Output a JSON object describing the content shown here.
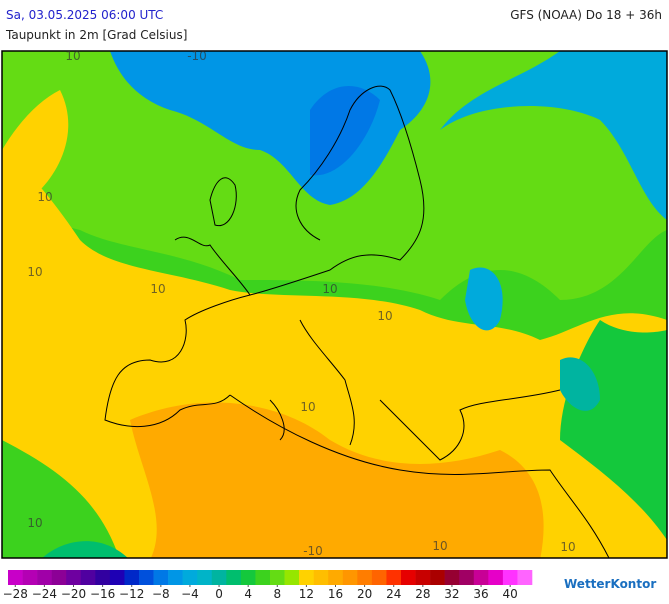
{
  "header": {
    "datetime": "Sa, 03.05.2025 06:00 UTC",
    "model": "GFS (NOAA) Do 18 + 36h",
    "subtitle": "Taupunkt in 2m [Grad Celsius]"
  },
  "map_labels": [
    "10",
    "-10",
    "10",
    "10",
    "10",
    "10",
    "10",
    "10",
    "-10",
    "10",
    "10",
    "10"
  ],
  "legend": {
    "colors": [
      "#c800c8",
      "#b400b4",
      "#a000a8",
      "#8c0096",
      "#6e00a0",
      "#5000a0",
      "#3200a0",
      "#1e00b4",
      "#0028c8",
      "#0050dc",
      "#0078e6",
      "#0096e6",
      "#00aadc",
      "#00b4c8",
      "#00b4a0",
      "#00be6e",
      "#14c83c",
      "#3cd21e",
      "#64dc14",
      "#96e600",
      "#ffd200",
      "#ffbe00",
      "#ffaa00",
      "#ff9600",
      "#ff7d00",
      "#ff6400",
      "#ff3200",
      "#e60000",
      "#c80000",
      "#aa0000",
      "#960032",
      "#a00064",
      "#c80096",
      "#e600c8",
      "#ff32ff",
      "#ff64ff"
    ],
    "ticks": [
      {
        "value": -28,
        "label": "−28"
      },
      {
        "value": -24,
        "label": "−24"
      },
      {
        "value": -20,
        "label": "−20"
      },
      {
        "value": -16,
        "label": "−16"
      },
      {
        "value": -12,
        "label": "−12"
      },
      {
        "value": -8,
        "label": "−8"
      },
      {
        "value": -4,
        "label": "−4"
      },
      0,
      4,
      8,
      12,
      16,
      20,
      24,
      28,
      32,
      36,
      40
    ]
  },
  "logo": "WetterKontor"
}
